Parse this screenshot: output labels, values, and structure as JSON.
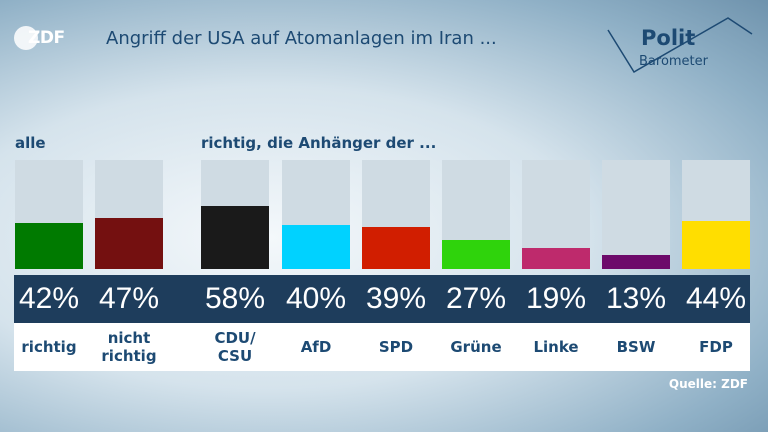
{
  "header": {
    "logo": "ZDF",
    "title": "Angriff der USA auf Atomanlagen im Iran ...",
    "brand_line1": "Polit",
    "brand_line2": "Barometer"
  },
  "labels": {
    "left_group": "alle",
    "right_group": "richtig, die Anhänger der ..."
  },
  "source": "Quelle: ZDF",
  "chart_data": {
    "type": "bar",
    "ylim": [
      0,
      100
    ],
    "bars": [
      {
        "pct": "42%",
        "label": "richtig",
        "value": 42,
        "color": "#007a00"
      },
      {
        "pct": "47%",
        "label": "nicht richtig",
        "value": 47,
        "color": "#741010"
      },
      {
        "pct": "58%",
        "label": "CDU/ CSU",
        "value": 58,
        "color": "#1a1a1a"
      },
      {
        "pct": "40%",
        "label": "AfD",
        "value": 40,
        "color": "#00d2ff"
      },
      {
        "pct": "39%",
        "label": "SPD",
        "value": 39,
        "color": "#d11e00"
      },
      {
        "pct": "27%",
        "label": "Grüne",
        "value": 27,
        "color": "#2fd30c"
      },
      {
        "pct": "19%",
        "label": "Linke",
        "value": 19,
        "color": "#be2a6c"
      },
      {
        "pct": "13%",
        "label": "BSW",
        "value": 13,
        "color": "#6d0a6a"
      },
      {
        "pct": "44%",
        "label": "FDP",
        "value": 44,
        "color": "#ffde00"
      }
    ]
  }
}
